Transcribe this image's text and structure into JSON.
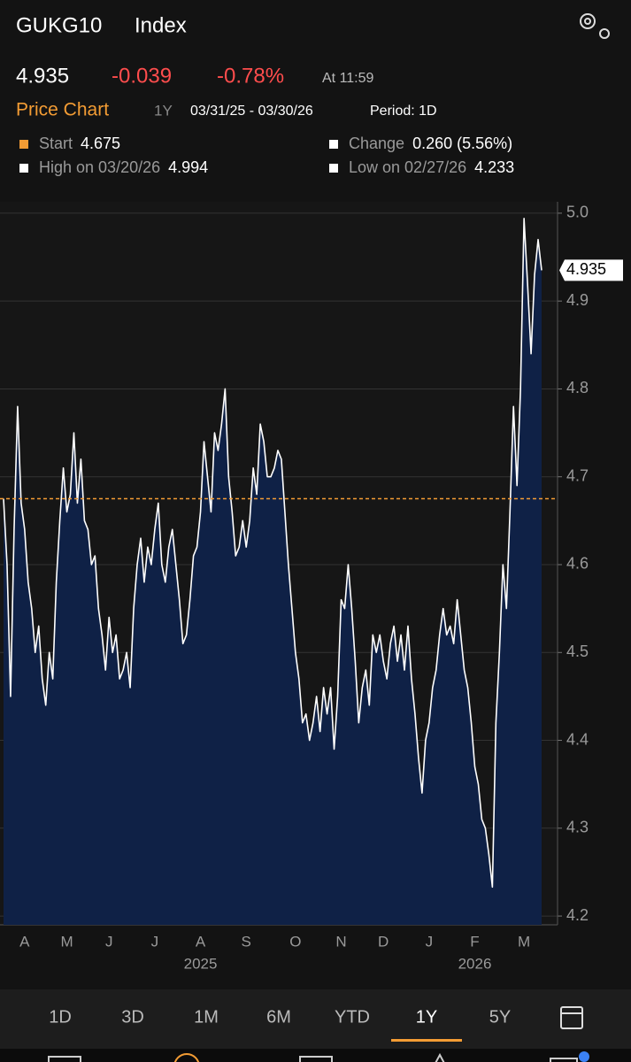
{
  "header": {
    "ticker": "GUKG10",
    "type": "Index",
    "last": "4.935",
    "change": "-0.039",
    "change_pct": "-0.78%",
    "time": "At 11:59"
  },
  "chart_header": {
    "title": "Price Chart",
    "range": "1Y",
    "dates": "03/31/25 - 03/30/26",
    "period": "Period: 1D"
  },
  "stats": [
    {
      "label": "Start",
      "value": "4.675"
    },
    {
      "label": "Change",
      "value": "0.260 (5.56%)"
    },
    {
      "label": "High on 03/20/26",
      "value": "4.994"
    },
    {
      "label": "Low on 02/27/26",
      "value": "4.233"
    }
  ],
  "chart_data": {
    "type": "area",
    "categories": [
      null,
      null,
      null,
      null,
      null,
      null,
      "A",
      null,
      null,
      null,
      null,
      null,
      null,
      null,
      null,
      null,
      null,
      null,
      "M",
      null,
      null,
      null,
      null,
      null,
      null,
      null,
      null,
      null,
      null,
      null,
      "J",
      null,
      null,
      null,
      null,
      null,
      null,
      null,
      null,
      null,
      null,
      null,
      null,
      "J",
      null,
      null,
      null,
      null,
      null,
      null,
      null,
      null,
      null,
      null,
      null,
      null,
      "A",
      null,
      null,
      null,
      null,
      null,
      null,
      null,
      null,
      null,
      null,
      null,
      null,
      "S",
      null,
      null,
      null,
      null,
      null,
      null,
      null,
      null,
      null,
      null,
      null,
      null,
      null,
      "O",
      null,
      null,
      null,
      null,
      null,
      null,
      null,
      null,
      null,
      null,
      null,
      null,
      "N",
      null,
      null,
      null,
      null,
      null,
      null,
      null,
      null,
      null,
      null,
      null,
      "D",
      null,
      null,
      null,
      null,
      null,
      null,
      null,
      null,
      null,
      null,
      null,
      null,
      "J",
      null,
      null,
      null,
      null,
      null,
      null,
      null,
      null,
      null,
      null,
      null,
      null,
      "F",
      null,
      null,
      null,
      null,
      null,
      null,
      null,
      null,
      null,
      null,
      null,
      null,
      null,
      "M",
      null,
      null,
      null,
      null,
      null
    ],
    "values": [
      4.675,
      4.6,
      4.45,
      4.64,
      4.78,
      4.67,
      4.64,
      4.58,
      4.55,
      4.5,
      4.53,
      4.47,
      4.44,
      4.5,
      4.47,
      4.58,
      4.65,
      4.71,
      4.66,
      4.68,
      4.75,
      4.67,
      4.72,
      4.65,
      4.64,
      4.6,
      4.61,
      4.55,
      4.52,
      4.48,
      4.54,
      4.5,
      4.52,
      4.47,
      4.48,
      4.5,
      4.46,
      4.55,
      4.6,
      4.63,
      4.58,
      4.62,
      4.6,
      4.64,
      4.67,
      4.6,
      4.58,
      4.62,
      4.64,
      4.6,
      4.56,
      4.51,
      4.52,
      4.56,
      4.61,
      4.62,
      4.66,
      4.74,
      4.7,
      4.66,
      4.75,
      4.73,
      4.76,
      4.8,
      4.7,
      4.66,
      4.61,
      4.62,
      4.65,
      4.62,
      4.65,
      4.71,
      4.68,
      4.76,
      4.74,
      4.7,
      4.7,
      4.71,
      4.73,
      4.72,
      4.66,
      4.6,
      4.55,
      4.5,
      4.47,
      4.42,
      4.43,
      4.4,
      4.42,
      4.45,
      4.41,
      4.46,
      4.43,
      4.46,
      4.39,
      4.45,
      4.56,
      4.55,
      4.6,
      4.55,
      4.49,
      4.42,
      4.46,
      4.48,
      4.44,
      4.52,
      4.5,
      4.52,
      4.49,
      4.47,
      4.51,
      4.53,
      4.49,
      4.52,
      4.48,
      4.53,
      4.47,
      4.43,
      4.38,
      4.34,
      4.4,
      4.42,
      4.46,
      4.48,
      4.52,
      4.55,
      4.52,
      4.53,
      4.51,
      4.56,
      4.52,
      4.48,
      4.46,
      4.42,
      4.37,
      4.35,
      4.31,
      4.3,
      4.27,
      4.233,
      4.42,
      4.5,
      4.6,
      4.55,
      4.66,
      4.78,
      4.69,
      4.8,
      4.994,
      4.92,
      4.84,
      4.93,
      4.97,
      4.935
    ],
    "year_labels": [
      "2025",
      "2026"
    ],
    "ylim": [
      4.19,
      5.013
    ],
    "yticks": [
      {
        "value": 4.2,
        "label": "4.2"
      },
      {
        "value": 4.3,
        "label": "4.3"
      },
      {
        "value": 4.4,
        "label": "4.4"
      },
      {
        "value": 4.5,
        "label": "4.5"
      },
      {
        "value": 4.6,
        "label": "4.6"
      },
      {
        "value": 4.7,
        "label": "4.7"
      },
      {
        "value": 4.8,
        "label": "4.8"
      },
      {
        "value": 4.9,
        "label": "4.9"
      },
      {
        "value": 5,
        "label": "5.0"
      }
    ],
    "grid": true,
    "line_color": "#ffffff",
    "fill_color": "#0f2146",
    "reference_color": "#f39c34"
  },
  "tabs": [
    "1D",
    "3D",
    "1M",
    "6M",
    "YTD",
    "1Y",
    "5Y"
  ],
  "selected_tab": "1Y"
}
